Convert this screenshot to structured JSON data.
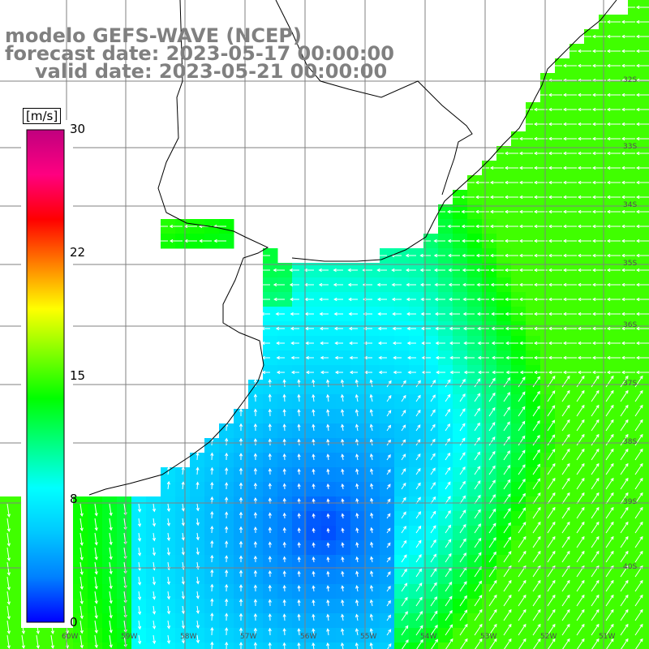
{
  "title": {
    "line1": "modelo GEFS-WAVE (NCEP)",
    "line2": "forecast date: 2023-05-17 00:00:00",
    "line3": "valid date: 2023-05-21 00:00:00"
  },
  "colorbar": {
    "unit": "[m/s]",
    "ticks": [
      "30",
      "22",
      "15",
      "8",
      "0"
    ],
    "colors": [
      "#0000ff",
      "#0080ff",
      "#00c8ff",
      "#00ffff",
      "#00ff80",
      "#00ff00",
      "#80ff00",
      "#ffff00",
      "#ff8000",
      "#ff0000",
      "#ff0080",
      "#c0007f"
    ]
  },
  "lat_labels": [
    "32S",
    "33S",
    "34S",
    "35S",
    "36S",
    "37S",
    "38S",
    "39S",
    "40S"
  ],
  "lon_labels": [
    "60W",
    "59W",
    "58W",
    "57W",
    "56W",
    "55W",
    "54W",
    "53W",
    "52W",
    "51W"
  ],
  "chart_data": {
    "type": "heatmap",
    "field": "wind speed",
    "units": "m/s",
    "range": [
      0,
      30
    ],
    "arrows": "wind direction vectors"
  }
}
